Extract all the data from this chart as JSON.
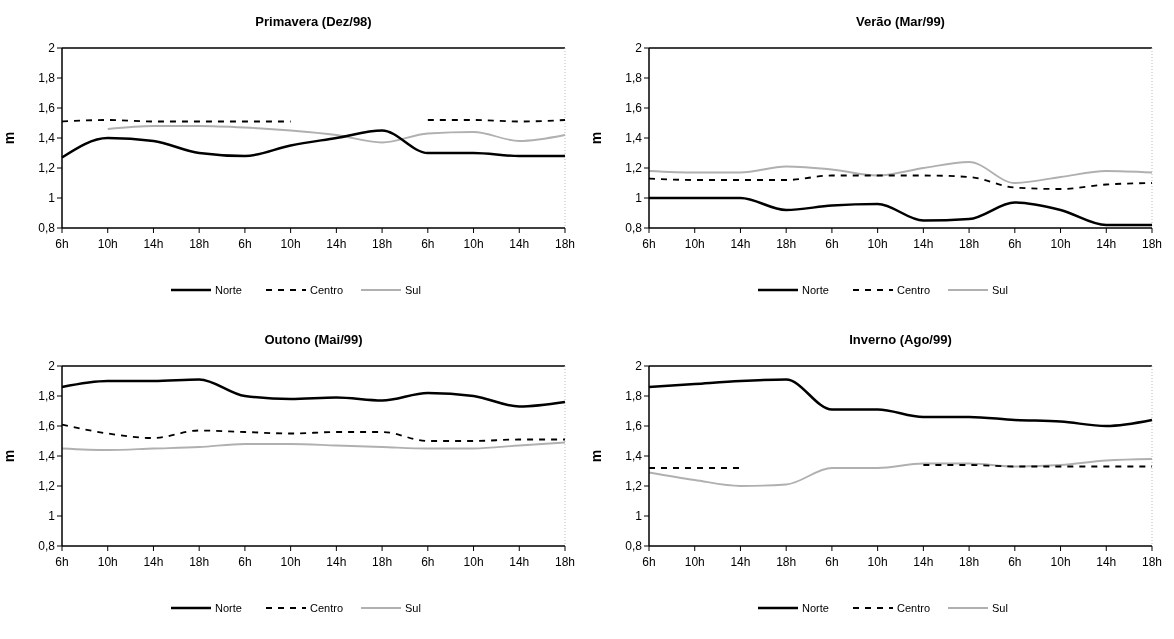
{
  "chart_data": [
    {
      "type": "line",
      "title": "Primavera (Dez/98)",
      "ylabel": "m",
      "categories": [
        "6h",
        "10h",
        "14h",
        "18h",
        "6h",
        "10h",
        "14h",
        "18h",
        "6h",
        "10h",
        "14h",
        "18h"
      ],
      "ylim": [
        0.8,
        2
      ],
      "yticks": [
        {
          "value": 0.8,
          "label": "0,8"
        },
        {
          "value": 1,
          "label": "1"
        },
        {
          "value": 1.2,
          "label": "1,2"
        },
        {
          "value": 1.4,
          "label": "1,4"
        },
        {
          "value": 1.6,
          "label": "1,6"
        },
        {
          "value": 1.8,
          "label": "1,8"
        },
        {
          "value": 2,
          "label": "2"
        }
      ],
      "legend": "bottom",
      "grid": false,
      "series": [
        {
          "name": "Norte",
          "color": "#000000",
          "line_style": "solid",
          "values": [
            1.27,
            1.4,
            1.38,
            1.3,
            1.28,
            1.35,
            1.4,
            1.45,
            1.3,
            1.3,
            1.28,
            1.28
          ]
        },
        {
          "name": "Centro",
          "color": "#000000",
          "line_style": "dashed",
          "values": [
            1.51,
            1.52,
            1.51,
            1.51,
            1.51,
            1.51,
            null,
            null,
            1.52,
            1.52,
            1.51,
            1.52
          ]
        },
        {
          "name": "Sul",
          "color": "#b0b0b0",
          "line_style": "solid",
          "values": [
            null,
            1.46,
            1.48,
            1.48,
            1.47,
            1.45,
            1.42,
            1.37,
            1.43,
            1.44,
            1.38,
            1.42
          ]
        }
      ]
    },
    {
      "type": "line",
      "title": "Verão (Mar/99)",
      "ylabel": "m",
      "categories": [
        "6h",
        "10h",
        "14h",
        "18h",
        "6h",
        "10h",
        "14h",
        "18h",
        "6h",
        "10h",
        "14h",
        "18h"
      ],
      "ylim": [
        0.8,
        2
      ],
      "yticks": [
        {
          "value": 0.8,
          "label": "0,8"
        },
        {
          "value": 1,
          "label": "1"
        },
        {
          "value": 1.2,
          "label": "1,2"
        },
        {
          "value": 1.4,
          "label": "1,4"
        },
        {
          "value": 1.6,
          "label": "1,6"
        },
        {
          "value": 1.8,
          "label": "1,8"
        },
        {
          "value": 2,
          "label": "2"
        }
      ],
      "legend": "bottom",
      "grid": false,
      "series": [
        {
          "name": "Norte",
          "color": "#000000",
          "line_style": "solid",
          "values": [
            1.0,
            1.0,
            1.0,
            0.92,
            0.95,
            0.96,
            0.85,
            0.86,
            0.97,
            0.92,
            0.82,
            0.82
          ]
        },
        {
          "name": "Centro",
          "color": "#000000",
          "line_style": "dashed",
          "values": [
            1.13,
            1.12,
            1.12,
            1.12,
            1.15,
            1.15,
            1.15,
            1.14,
            1.07,
            1.06,
            1.09,
            1.1
          ]
        },
        {
          "name": "Sul",
          "color": "#b0b0b0",
          "line_style": "solid",
          "values": [
            1.18,
            1.17,
            1.17,
            1.21,
            1.19,
            1.15,
            1.2,
            1.24,
            1.1,
            1.14,
            1.18,
            1.17
          ]
        }
      ]
    },
    {
      "type": "line",
      "title": "Outono (Mai/99)",
      "ylabel": "m",
      "categories": [
        "6h",
        "10h",
        "14h",
        "18h",
        "6h",
        "10h",
        "14h",
        "18h",
        "6h",
        "10h",
        "14h",
        "18h"
      ],
      "ylim": [
        0.8,
        2
      ],
      "yticks": [
        {
          "value": 0.8,
          "label": "0,8"
        },
        {
          "value": 1,
          "label": "1"
        },
        {
          "value": 1.2,
          "label": "1,2"
        },
        {
          "value": 1.4,
          "label": "1,4"
        },
        {
          "value": 1.6,
          "label": "1,6"
        },
        {
          "value": 1.8,
          "label": "1,8"
        },
        {
          "value": 2,
          "label": "2"
        }
      ],
      "legend": "bottom",
      "grid": false,
      "series": [
        {
          "name": "Norte",
          "color": "#000000",
          "line_style": "solid",
          "values": [
            1.86,
            1.9,
            1.9,
            1.91,
            1.8,
            1.78,
            1.79,
            1.77,
            1.82,
            1.8,
            1.73,
            1.76
          ]
        },
        {
          "name": "Centro",
          "color": "#000000",
          "line_style": "dashed",
          "values": [
            1.61,
            1.55,
            1.52,
            1.57,
            1.56,
            1.55,
            1.56,
            1.56,
            1.5,
            1.5,
            1.51,
            1.51
          ]
        },
        {
          "name": "Sul",
          "color": "#b0b0b0",
          "line_style": "solid",
          "values": [
            1.45,
            1.44,
            1.45,
            1.46,
            1.48,
            1.48,
            1.47,
            1.46,
            1.45,
            1.45,
            1.47,
            1.49
          ]
        }
      ]
    },
    {
      "type": "line",
      "title": "Inverno (Ago/99)",
      "ylabel": "m",
      "categories": [
        "6h",
        "10h",
        "14h",
        "18h",
        "6h",
        "10h",
        "14h",
        "18h",
        "6h",
        "10h",
        "14h",
        "18h"
      ],
      "ylim": [
        0.8,
        2
      ],
      "yticks": [
        {
          "value": 0.8,
          "label": "0,8"
        },
        {
          "value": 1,
          "label": "1"
        },
        {
          "value": 1.2,
          "label": "1,2"
        },
        {
          "value": 1.4,
          "label": "1,4"
        },
        {
          "value": 1.6,
          "label": "1,6"
        },
        {
          "value": 1.8,
          "label": "1,8"
        },
        {
          "value": 2,
          "label": "2"
        }
      ],
      "legend": "bottom",
      "grid": false,
      "series": [
        {
          "name": "Norte",
          "color": "#000000",
          "line_style": "solid",
          "values": [
            1.86,
            1.88,
            1.9,
            1.91,
            1.71,
            1.71,
            1.66,
            1.66,
            1.64,
            1.63,
            1.6,
            1.64
          ]
        },
        {
          "name": "Centro",
          "color": "#000000",
          "line_style": "dashed",
          "values": [
            1.32,
            1.32,
            1.32,
            null,
            null,
            null,
            1.34,
            1.34,
            1.33,
            1.33,
            1.33,
            1.33
          ]
        },
        {
          "name": "Sul",
          "color": "#b0b0b0",
          "line_style": "solid",
          "values": [
            1.29,
            1.24,
            1.2,
            1.21,
            1.32,
            1.32,
            1.35,
            1.35,
            1.33,
            1.34,
            1.37,
            1.38
          ]
        }
      ]
    }
  ]
}
